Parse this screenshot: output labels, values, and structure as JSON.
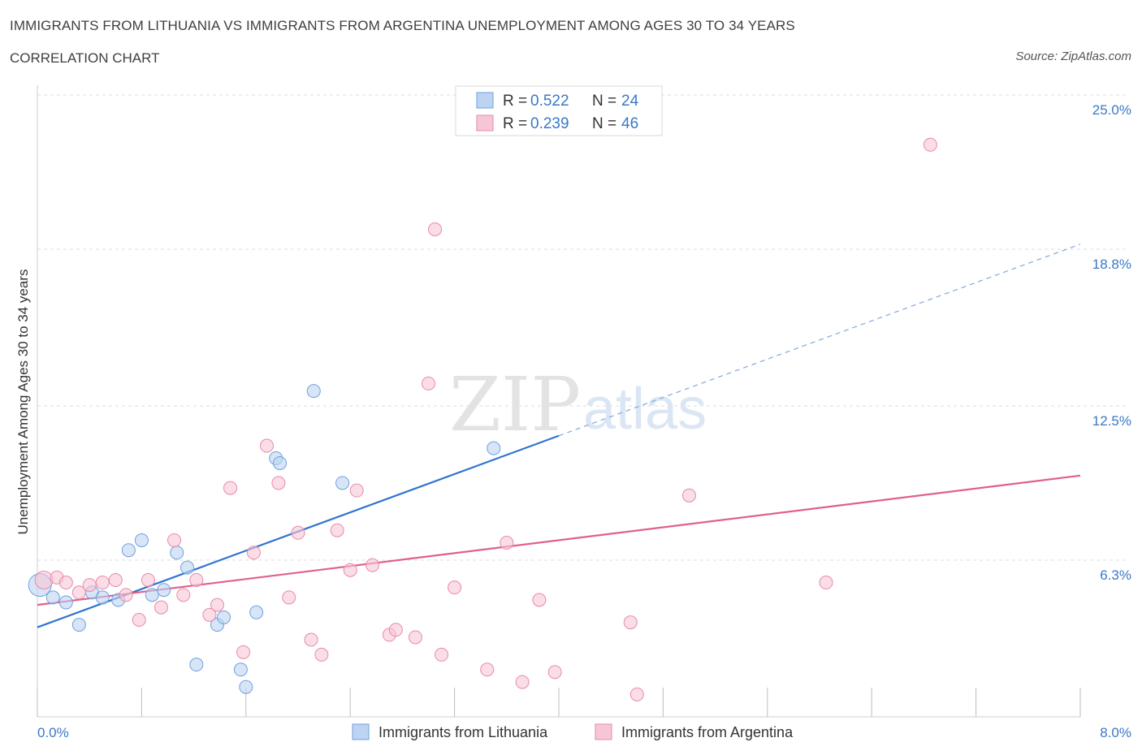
{
  "header": {
    "title": "IMMIGRANTS FROM LITHUANIA VS IMMIGRANTS FROM ARGENTINA UNEMPLOYMENT AMONG AGES 30 TO 34 YEARS",
    "subtitle": "CORRELATION CHART",
    "source": "Source: ZipAtlas.com"
  },
  "watermark": {
    "zip": "ZIP",
    "atlas": "atlas"
  },
  "legend_box": {
    "rows": [
      {
        "r_label": "R =",
        "r_value": "0.522",
        "n_label": "N =",
        "n_value": "24"
      },
      {
        "r_label": "R =",
        "r_value": "0.239",
        "n_label": "N =",
        "n_value": "46"
      }
    ]
  },
  "chart_data": {
    "type": "scatter",
    "title": "IMMIGRANTS FROM LITHUANIA VS IMMIGRANTS FROM ARGENTINA UNEMPLOYMENT AMONG AGES 30 TO 34 YEARS",
    "xlabel": "",
    "ylabel": "Unemployment Among Ages 30 to 34 years",
    "xlim": [
      0,
      8.0
    ],
    "ylim": [
      0,
      25.0
    ],
    "x_tick_labels": [
      "0.0%",
      "8.0%"
    ],
    "y_ticks": [
      6.3,
      12.5,
      18.8,
      25.0
    ],
    "y_tick_labels": [
      "6.3%",
      "12.5%",
      "18.8%",
      "25.0%"
    ],
    "grid": true,
    "legend_position": "bottom",
    "series": [
      {
        "name": "Immigrants from Lithuania",
        "color": "#6ea0e0",
        "fill": "#bcd3f2",
        "r": 0.522,
        "n": 24,
        "trend": {
          "x0": 0.0,
          "y0": 3.6,
          "x1": 4.0,
          "y1": 11.3,
          "dashed_to_x": 8.0,
          "dashed_to_y": 19.0,
          "color": "#2f74d0"
        },
        "points": [
          [
            0.02,
            5.3
          ],
          [
            0.12,
            4.8
          ],
          [
            0.22,
            4.6
          ],
          [
            0.32,
            3.7
          ],
          [
            0.42,
            5.0
          ],
          [
            0.5,
            4.8
          ],
          [
            0.62,
            4.7
          ],
          [
            0.7,
            6.7
          ],
          [
            0.8,
            7.1
          ],
          [
            0.88,
            4.9
          ],
          [
            0.97,
            5.1
          ],
          [
            1.07,
            6.6
          ],
          [
            1.15,
            6.0
          ],
          [
            1.22,
            2.1
          ],
          [
            1.38,
            3.7
          ],
          [
            1.43,
            4.0
          ],
          [
            1.56,
            1.9
          ],
          [
            1.6,
            1.2
          ],
          [
            1.68,
            4.2
          ],
          [
            1.83,
            10.4
          ],
          [
            1.86,
            10.2
          ],
          [
            2.12,
            13.1
          ],
          [
            2.34,
            9.4
          ],
          [
            3.5,
            10.8
          ]
        ]
      },
      {
        "name": "Immigrants from Argentina",
        "color": "#e88aa8",
        "fill": "#f7c6d6",
        "r": 0.239,
        "n": 46,
        "trend": {
          "x0": 0.0,
          "y0": 4.5,
          "x1": 8.0,
          "y1": 9.7,
          "color": "#e0608a"
        },
        "points": [
          [
            0.05,
            5.5
          ],
          [
            0.15,
            5.6
          ],
          [
            0.22,
            5.4
          ],
          [
            0.32,
            5.0
          ],
          [
            0.4,
            5.3
          ],
          [
            0.5,
            5.4
          ],
          [
            0.6,
            5.5
          ],
          [
            0.68,
            4.9
          ],
          [
            0.78,
            3.9
          ],
          [
            0.85,
            5.5
          ],
          [
            0.95,
            4.4
          ],
          [
            1.05,
            7.1
          ],
          [
            1.12,
            4.9
          ],
          [
            1.22,
            5.5
          ],
          [
            1.32,
            4.1
          ],
          [
            1.38,
            4.5
          ],
          [
            1.48,
            9.2
          ],
          [
            1.58,
            2.6
          ],
          [
            1.66,
            6.6
          ],
          [
            1.76,
            10.9
          ],
          [
            1.85,
            9.4
          ],
          [
            1.93,
            4.8
          ],
          [
            2.0,
            7.4
          ],
          [
            2.1,
            3.1
          ],
          [
            2.18,
            2.5
          ],
          [
            2.3,
            7.5
          ],
          [
            2.4,
            5.9
          ],
          [
            2.45,
            9.1
          ],
          [
            2.57,
            6.1
          ],
          [
            2.7,
            3.3
          ],
          [
            2.75,
            3.5
          ],
          [
            2.9,
            3.2
          ],
          [
            3.0,
            13.4
          ],
          [
            3.05,
            19.6
          ],
          [
            3.1,
            2.5
          ],
          [
            3.2,
            5.2
          ],
          [
            3.45,
            1.9
          ],
          [
            3.6,
            7.0
          ],
          [
            3.72,
            1.4
          ],
          [
            3.85,
            4.7
          ],
          [
            3.97,
            1.8
          ],
          [
            4.55,
            3.8
          ],
          [
            4.6,
            0.9
          ],
          [
            5.0,
            8.9
          ],
          [
            6.05,
            5.4
          ],
          [
            6.85,
            23.0
          ]
        ]
      }
    ]
  }
}
